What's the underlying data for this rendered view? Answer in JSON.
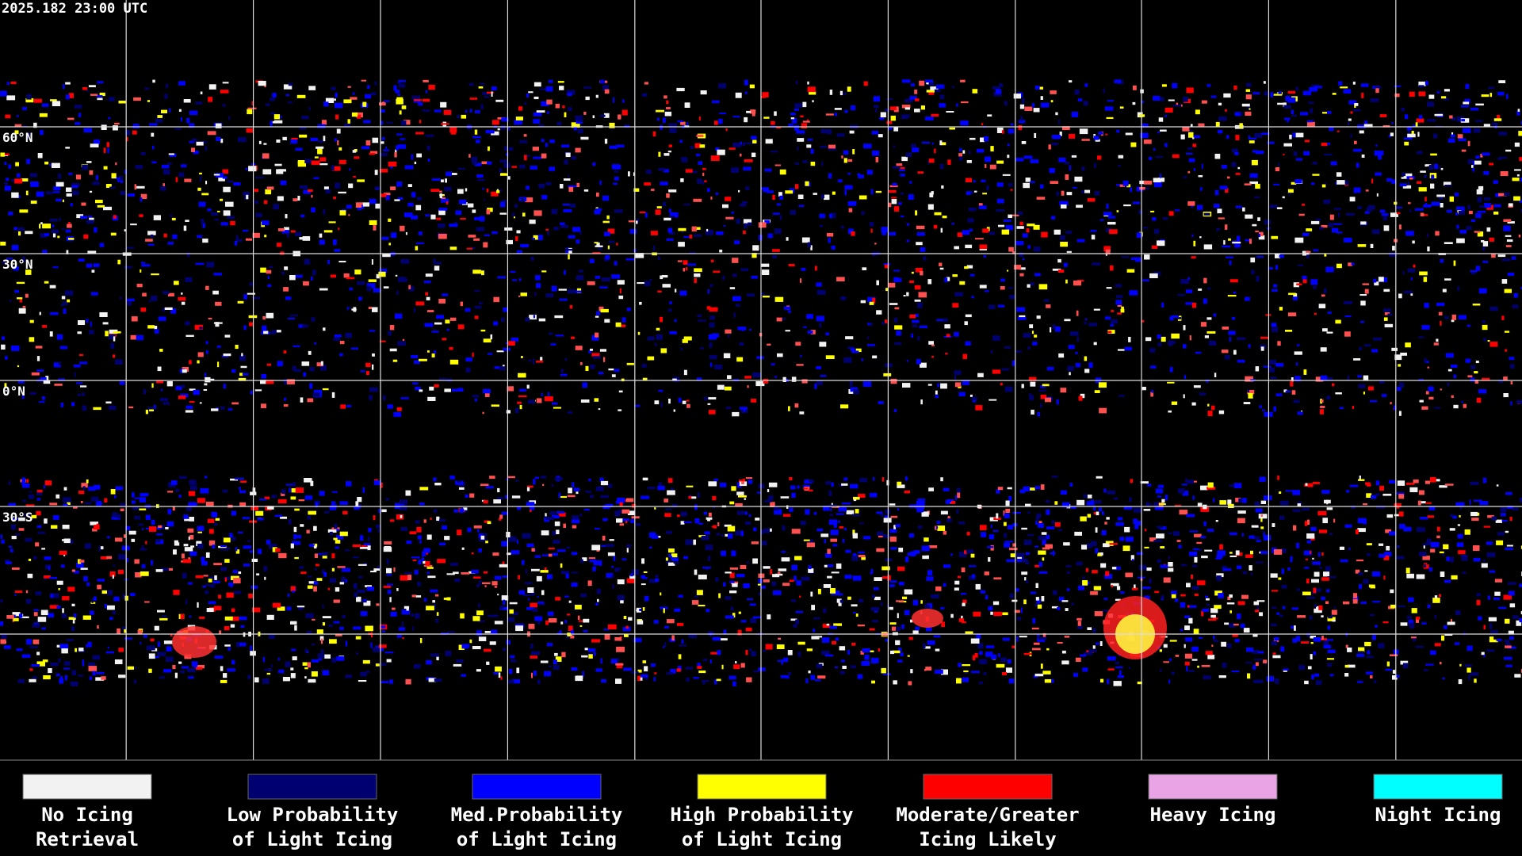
{
  "header": {
    "timestamp": "2025.182 23:00 UTC"
  },
  "map": {
    "latitude_labels": [
      "60°N",
      "30°N",
      "0°N",
      "30°S"
    ]
  },
  "legend": [
    {
      "color": "#f2f2f2",
      "lines": [
        "No Icing",
        "Retrieval"
      ]
    },
    {
      "color": "#000070",
      "lines": [
        "Low Probability",
        "of Light Icing"
      ]
    },
    {
      "color": "#0000ff",
      "lines": [
        "Med.Probability",
        "of Light Icing"
      ]
    },
    {
      "color": "#ffff00",
      "lines": [
        "High Probability",
        "of Light Icing"
      ]
    },
    {
      "color": "#ff0000",
      "lines": [
        "Moderate/Greater",
        "Icing Likely"
      ]
    },
    {
      "color": "#e8a4e4",
      "lines": [
        "Heavy Icing"
      ]
    },
    {
      "color": "#00ffff",
      "lines": [
        "Night Icing"
      ]
    }
  ]
}
